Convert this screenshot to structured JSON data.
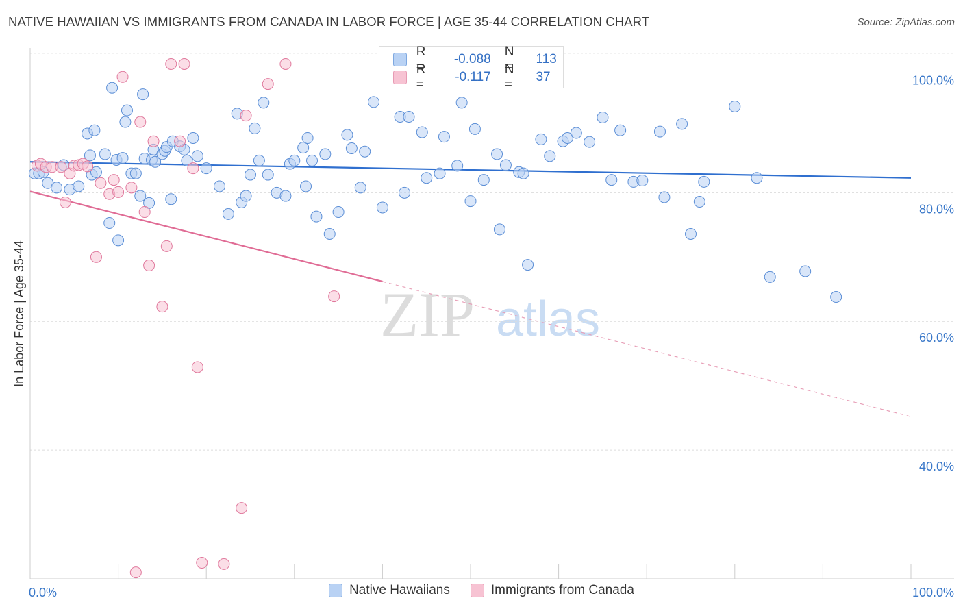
{
  "header": {
    "title": "NATIVE HAWAIIAN VS IMMIGRANTS FROM CANADA IN LABOR FORCE | AGE 35-44 CORRELATION CHART",
    "source": "Source: ZipAtlas.com"
  },
  "stats_legend": {
    "rows": [
      {
        "r_label": "R =",
        "r_value": "-0.088",
        "n_label": "N =",
        "n_value": "113",
        "color": "#b9d2f4"
      },
      {
        "r_label": "R =",
        "r_value": "-0.117",
        "n_label": "N =",
        "n_value": "37",
        "color": "#f7c3d3"
      }
    ]
  },
  "watermark": {
    "zip": "ZIP",
    "atlas": "atlas"
  },
  "chart_data": {
    "type": "scatter",
    "title": "NATIVE HAWAIIAN VS IMMIGRANTS FROM CANADA IN LABOR FORCE | AGE 35-44 CORRELATION CHART",
    "xlabel": "",
    "ylabel": "In Labor Force | Age 35-44",
    "xlim": [
      0,
      100
    ],
    "ylim": [
      20,
      102.5
    ],
    "x_tick_labels": [
      "0.0%",
      "100.0%"
    ],
    "y_ticks": [
      40,
      60,
      80,
      100
    ],
    "y_tick_labels": [
      "40.0%",
      "60.0%",
      "80.0%",
      "100.0%"
    ],
    "grid": true,
    "legend_position": "bottom",
    "series": [
      {
        "name": "Native Hawaiians",
        "color": "#5b8ed6",
        "fill": "#b9d2f4",
        "trend": {
          "x": [
            0,
            100
          ],
          "y": [
            84.8,
            82.3
          ]
        },
        "x": [
          0.5,
          1.0,
          1.5,
          2.0,
          3.0,
          3.8,
          4.5,
          5.5,
          6.5,
          6.8,
          7.0,
          7.3,
          7.5,
          8.5,
          9.0,
          9.3,
          9.8,
          10.0,
          10.5,
          10.8,
          11.0,
          11.5,
          12.0,
          12.5,
          12.8,
          13.0,
          13.5,
          13.8,
          14.0,
          14.2,
          15.0,
          15.3,
          15.5,
          16.0,
          16.2,
          17.0,
          17.5,
          17.8,
          18.5,
          19.0,
          20.0,
          21.5,
          22.5,
          23.5,
          24.0,
          24.5,
          25.0,
          25.5,
          26.0,
          26.5,
          27.0,
          28.0,
          29.0,
          29.5,
          30.0,
          31.0,
          31.3,
          31.5,
          32.0,
          32.5,
          33.5,
          34.0,
          35.0,
          36.0,
          36.5,
          37.5,
          38.0,
          39.0,
          40.0,
          42.0,
          42.5,
          43.0,
          44.5,
          45.0,
          46.5,
          47.0,
          48.5,
          49.0,
          50.0,
          50.5,
          51.5,
          53.0,
          53.3,
          54.0,
          55.5,
          56.0,
          56.5,
          58.0,
          59.0,
          60.5,
          61.0,
          62.0,
          63.5,
          65.0,
          66.0,
          67.0,
          68.5,
          69.5,
          71.5,
          72.0,
          74.0,
          75.0,
          76.0,
          76.5,
          80.0,
          82.5,
          84.0,
          88.0,
          91.5
        ],
        "y": [
          83.0,
          83.0,
          83.2,
          81.5,
          80.8,
          84.3,
          80.5,
          81.0,
          89.2,
          85.8,
          82.8,
          89.7,
          83.2,
          86.0,
          75.3,
          96.3,
          85.1,
          72.6,
          85.4,
          91.0,
          92.8,
          83.0,
          83.0,
          79.5,
          95.3,
          85.3,
          78.4,
          85.1,
          86.7,
          84.8,
          86.0,
          86.5,
          87.1,
          79.0,
          88.0,
          87.2,
          86.7,
          85.0,
          88.5,
          85.7,
          83.8,
          81.0,
          76.7,
          92.3,
          78.5,
          79.5,
          82.8,
          90.0,
          85.0,
          94.0,
          82.8,
          80.0,
          79.5,
          84.5,
          85.0,
          87.0,
          81.0,
          88.5,
          85.0,
          76.3,
          86.0,
          73.6,
          77.0,
          89.0,
          86.9,
          80.8,
          86.4,
          94.1,
          77.7,
          91.8,
          80.0,
          91.8,
          89.4,
          82.3,
          83.0,
          88.7,
          84.2,
          94.0,
          78.7,
          89.9,
          82.0,
          86.0,
          74.3,
          84.3,
          83.2,
          83.0,
          68.8,
          88.3,
          85.7,
          88.0,
          88.5,
          89.3,
          87.9,
          91.7,
          82.0,
          89.7,
          81.7,
          81.9,
          89.5,
          79.3,
          90.7,
          73.6,
          78.6,
          81.7,
          93.4,
          82.3,
          66.9,
          67.8,
          63.8
        ]
      },
      {
        "name": "Immigrants from Canada",
        "color": "#e0789c",
        "fill": "#f7c3d3",
        "trend": {
          "x": [
            0,
            40
          ],
          "y": [
            80.2,
            66.2
          ]
        },
        "trend_dashed": {
          "x": [
            40,
            100
          ],
          "y": [
            66.2,
            45.2
          ]
        },
        "x": [
          0.8,
          1.2,
          1.8,
          2.5,
          3.5,
          4.0,
          4.5,
          5.0,
          5.5,
          6.0,
          6.5,
          7.5,
          8.0,
          9.0,
          9.5,
          10.0,
          10.5,
          11.5,
          12.0,
          12.5,
          13.0,
          13.5,
          14.0,
          15.0,
          15.5,
          16.0,
          17.0,
          17.5,
          18.5,
          19.0,
          19.5,
          22.0,
          24.0,
          24.5,
          27.0,
          29.0,
          34.5
        ],
        "y": [
          84.2,
          84.5,
          84.0,
          84.0,
          84.0,
          78.5,
          83.0,
          84.2,
          84.3,
          84.5,
          84.1,
          70.0,
          81.5,
          79.8,
          82.0,
          80.1,
          98.0,
          80.8,
          21.0,
          91.0,
          77.0,
          68.7,
          88.0,
          62.3,
          71.7,
          100.0,
          88.0,
          100.0,
          83.8,
          52.9,
          22.5,
          22.3,
          31.0,
          92.0,
          96.9,
          100.0,
          63.9
        ]
      }
    ]
  }
}
